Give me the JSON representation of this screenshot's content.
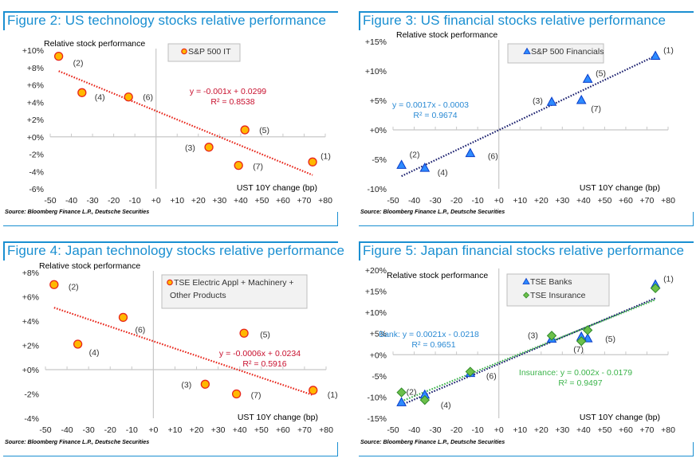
{
  "chart_data": [
    {
      "id": "fig2",
      "type": "scatter",
      "title": "Figure 2: US technology stocks relative performance",
      "ylabel": "Relative stock performance",
      "xlabel": "UST 10Y change (bp)",
      "xlim": [
        -50,
        80
      ],
      "ylim": [
        -6,
        10
      ],
      "xticks": [
        -50,
        -40,
        -30,
        -20,
        -10,
        0,
        10,
        20,
        30,
        40,
        50,
        60,
        70,
        80
      ],
      "xtick_labels": [
        "-50",
        "-40",
        "-30",
        "-20",
        "-10",
        "+0",
        "+10",
        "+20",
        "+30",
        "+40",
        "+50",
        "+60",
        "+70",
        "+80"
      ],
      "yticks": [
        10,
        8,
        6,
        4,
        2,
        0,
        -2,
        -4,
        -6
      ],
      "ytick_labels": [
        "+10%",
        "+8%",
        "+6%",
        "+4%",
        "+2%",
        "+0%",
        "-2%",
        "-4%",
        "-6%"
      ],
      "grid": false,
      "legend": "top-center",
      "series": [
        {
          "name": "S&P 500 IT",
          "marker": "circle",
          "color": "#ffb800",
          "edge_color": "#e8261b",
          "trend_color": "#e8261b",
          "trend_range": [
            -46,
            74
          ],
          "points": [
            {
              "label": "(1)",
              "x": 74,
              "y": -2.9
            },
            {
              "label": "(2)",
              "x": -46,
              "y": 9.3
            },
            {
              "label": "(3)",
              "x": 25,
              "y": -1.2
            },
            {
              "label": "(4)",
              "x": -35,
              "y": 5.1
            },
            {
              "label": "(5)",
              "x": 42,
              "y": 0.8
            },
            {
              "label": "(6)",
              "x": -13,
              "y": 4.6
            },
            {
              "label": "(7)",
              "x": 39,
              "y": -3.3
            }
          ],
          "trend": {
            "slope": -0.001,
            "intercept": 0.0299
          },
          "equation": "y = -0.001x + 0.0299",
          "r2": "R² = 0.8538",
          "eq_color": "#c8102e"
        }
      ],
      "source": "Source: Bloomberg Finance L.P., Deutsche Securities"
    },
    {
      "id": "fig3",
      "type": "scatter",
      "title": "Figure 3: US financial stocks relative performance",
      "ylabel": "Relative stock performance",
      "xlabel": "UST 10Y change (bp)",
      "xlim": [
        -50,
        80
      ],
      "ylim": [
        -10,
        15
      ],
      "xticks": [
        -50,
        -40,
        -30,
        -20,
        -10,
        0,
        10,
        20,
        30,
        40,
        50,
        60,
        70,
        80
      ],
      "xtick_labels": [
        "-50",
        "-40",
        "-30",
        "-20",
        "-10",
        "+0",
        "+10",
        "+20",
        "+30",
        "+40",
        "+50",
        "+60",
        "+70",
        "+80"
      ],
      "yticks": [
        15,
        10,
        5,
        0,
        -5,
        -10
      ],
      "ytick_labels": [
        "+15%",
        "+10%",
        "+5%",
        "+0%",
        "-5%",
        "-10%"
      ],
      "grid": false,
      "legend": "top-center",
      "series": [
        {
          "name": "S&P 500 Financials",
          "marker": "triangle",
          "color": "#2e8bff",
          "edge_color": "#0a3cc8",
          "trend_color": "#1a1f6e",
          "trend_range": [
            -46,
            74
          ],
          "points": [
            {
              "label": "(1)",
              "x": 74,
              "y": 12.5
            },
            {
              "label": "(2)",
              "x": -46,
              "y": -6.0
            },
            {
              "label": "(3)",
              "x": 25,
              "y": 4.7
            },
            {
              "label": "(4)",
              "x": -35,
              "y": -6.5
            },
            {
              "label": "(5)",
              "x": 42,
              "y": 8.6
            },
            {
              "label": "(6)",
              "x": -13.5,
              "y": -4.0
            },
            {
              "label": "(7)",
              "x": 39,
              "y": 5.0
            }
          ],
          "trend": {
            "slope": 0.0017,
            "intercept": -0.0003
          },
          "equation": "y = 0.0017x - 0.0003",
          "r2": "R² = 0.9674",
          "eq_color": "#2a8ad4"
        }
      ],
      "source": "Source: Bloomberg Finance L.P., Deutsche Securities"
    },
    {
      "id": "fig4",
      "type": "scatter",
      "title": "Figure 4: Japan technology stocks relative performance",
      "ylabel": "Relative stock performance",
      "xlabel": "UST 10Y change (bp)",
      "xlim": [
        -50,
        80
      ],
      "ylim": [
        -4,
        8
      ],
      "xticks": [
        -50,
        -40,
        -30,
        -20,
        -10,
        0,
        10,
        20,
        30,
        40,
        50,
        60,
        70,
        80
      ],
      "xtick_labels": [
        "-50",
        "-40",
        "-30",
        "-20",
        "-10",
        "+0",
        "+10",
        "+20",
        "+30",
        "+40",
        "+50",
        "+60",
        "+70",
        "+80"
      ],
      "yticks": [
        8,
        6,
        4,
        2,
        0,
        -2,
        -4
      ],
      "ytick_labels": [
        "+8%",
        "+6%",
        "+4%",
        "+2%",
        "+0%",
        "-2%",
        "-4%"
      ],
      "grid": false,
      "legend": "top-center",
      "series": [
        {
          "name": "TSE Electric Appl + Machinery + Other Products",
          "legend_lines": [
            "TSE Electric Appl + Machinery +",
            "Other Products"
          ],
          "marker": "circle",
          "color": "#ffb800",
          "edge_color": "#e8261b",
          "trend_color": "#e8261b",
          "trend_range": [
            -46,
            74
          ],
          "points": [
            {
              "label": "(1)",
              "x": 74,
              "y": -1.7
            },
            {
              "label": "(2)",
              "x": -46,
              "y": 7.0
            },
            {
              "label": "(3)",
              "x": 24,
              "y": -1.2
            },
            {
              "label": "(4)",
              "x": -35,
              "y": 2.1
            },
            {
              "label": "(5)",
              "x": 42,
              "y": 3.0
            },
            {
              "label": "(6)",
              "x": -14,
              "y": 4.3
            },
            {
              "label": "(7)",
              "x": 38.5,
              "y": -2.0
            }
          ],
          "trend": {
            "slope": -0.0006,
            "intercept": 0.0234
          },
          "equation": "y = -0.0006x + 0.0234",
          "r2": "R² = 0.5916",
          "eq_color": "#c8102e"
        }
      ],
      "source": "Source: Bloomberg Finance L.P., Deutsche Securities"
    },
    {
      "id": "fig5",
      "type": "scatter",
      "title": "Figure 5: Japan financial stocks relative performance",
      "ylabel": "Relative stock performance",
      "xlabel": "UST 10Y change (bp)",
      "xlim": [
        -50,
        80
      ],
      "ylim": [
        -15,
        20
      ],
      "xticks": [
        -50,
        -40,
        -30,
        -20,
        -10,
        0,
        10,
        20,
        30,
        40,
        50,
        60,
        70,
        80
      ],
      "xtick_labels": [
        "-50",
        "-40",
        "-30",
        "-20",
        "-10",
        "+0",
        "+10",
        "+20",
        "+30",
        "+40",
        "+50",
        "+60",
        "+70",
        "+80"
      ],
      "yticks": [
        20,
        15,
        10,
        5,
        0,
        -5,
        -10,
        -15
      ],
      "ytick_labels": [
        "+20%",
        "+15%",
        "+10%",
        "+5%",
        "+0%",
        "-5%",
        "-10%",
        "-15%"
      ],
      "grid": false,
      "legend": "top-center",
      "series": [
        {
          "name": "TSE Banks",
          "marker": "triangle",
          "color": "#2e8bff",
          "edge_color": "#0a3cc8",
          "trend_color": "#1a1f6e",
          "trend_range": [
            -46,
            74
          ],
          "points": [
            {
              "label": "(1)",
              "x": 74,
              "y": 16.5
            },
            {
              "label": "(2)",
              "x": -46,
              "y": -11.3
            },
            {
              "label": "(3)",
              "x": 25,
              "y": 3.7
            },
            {
              "label": "(4)",
              "x": -35,
              "y": -9.5
            },
            {
              "label": "(5)",
              "x": 42,
              "y": 3.8
            },
            {
              "label": "(6)",
              "x": -13.5,
              "y": -4.4
            },
            {
              "label": "(7)",
              "x": 39,
              "y": 4.2
            }
          ],
          "trend": {
            "slope": 0.0021,
            "intercept": -0.0218
          },
          "equation": "Bank: y = 0.0021x - 0.0218",
          "r2": "R² = 0.9651",
          "eq_color": "#2a8ad4"
        },
        {
          "name": "TSE Insurance",
          "marker": "diamond",
          "color": "#6cc04a",
          "edge_color": "#2f8a2a",
          "trend_color": "#3cb44b",
          "trend_range": [
            -46,
            74
          ],
          "points": [
            {
              "label": "(1)",
              "x": 74,
              "y": 15.7
            },
            {
              "label": "(2)",
              "x": -46,
              "y": -8.9
            },
            {
              "label": "(3)",
              "x": 25,
              "y": 4.5
            },
            {
              "label": "(4)",
              "x": -35,
              "y": -10.7
            },
            {
              "label": "(5)",
              "x": 42,
              "y": 5.8
            },
            {
              "label": "(6)",
              "x": -13.5,
              "y": -4.0
            },
            {
              "label": "(7)",
              "x": 39,
              "y": 3.2
            }
          ],
          "trend": {
            "slope": 0.002,
            "intercept": -0.0179
          },
          "equation": "Insurance:  y = 0.002x - 0.0179",
          "r2": "R² = 0.9497",
          "eq_color": "#3cb44b"
        }
      ],
      "source": "Source: Bloomberg Finance L.P., Deutsche Securities"
    }
  ]
}
